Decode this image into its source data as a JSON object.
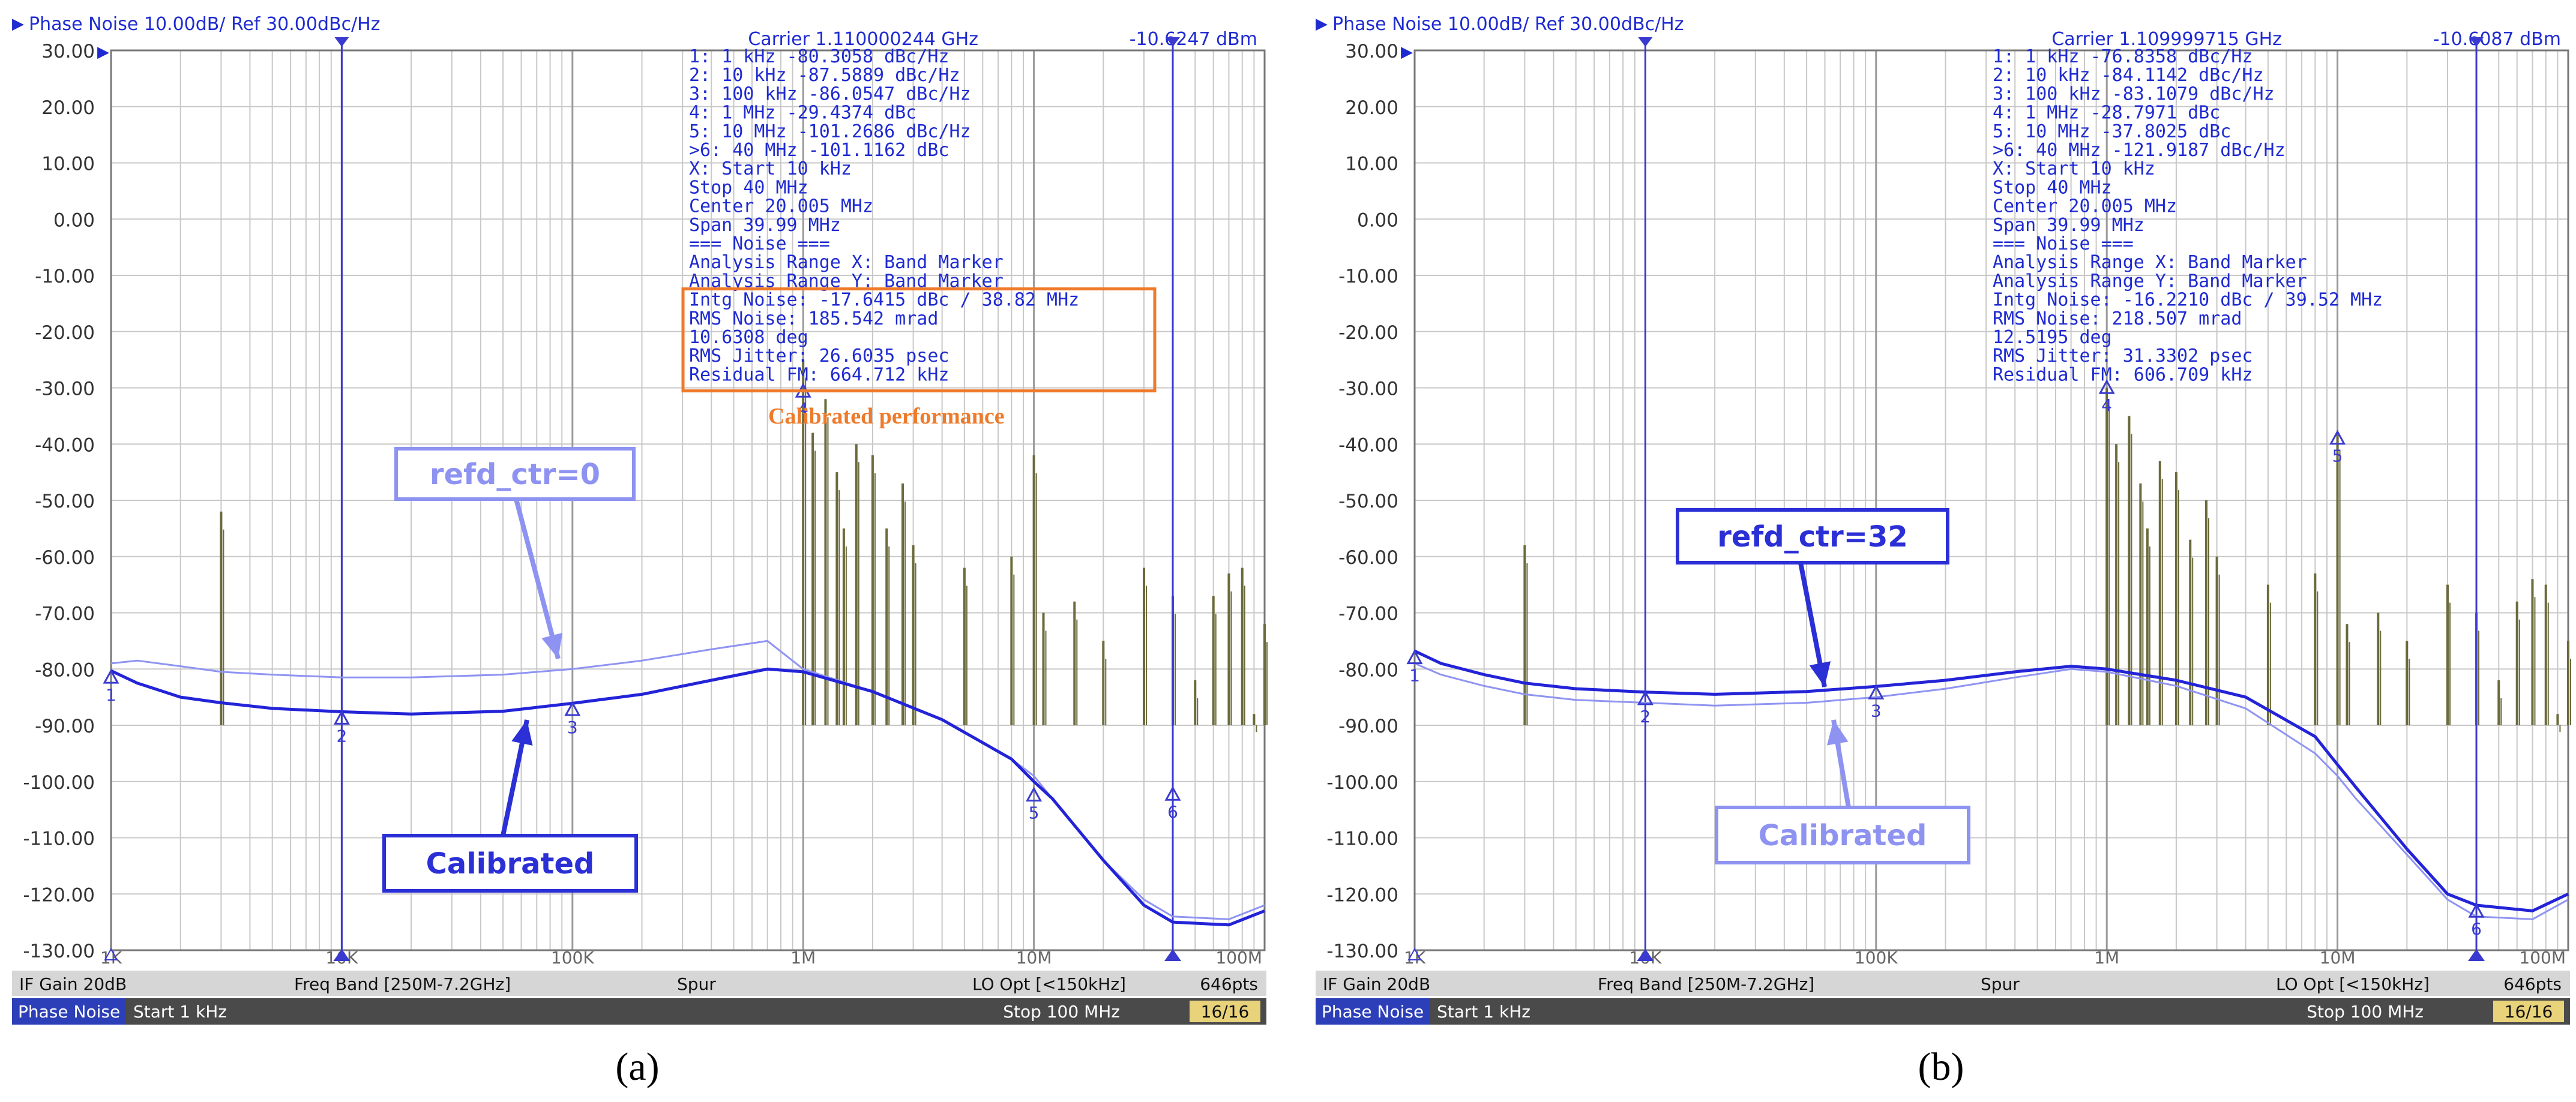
{
  "panels": [
    {
      "id": "a",
      "header": {
        "title": "Phase Noise 10.00dB/ Ref 30.00dBc/Hz",
        "carrier": "Carrier 1.110000244 GHz",
        "power": "-10.6247 dBm"
      },
      "marker_table": [
        " 1:   1 kHz     -80.3058 dBc/Hz",
        " 2:  10 kHz     -87.5889 dBc/Hz",
        " 3: 100 kHz     -86.0547 dBc/Hz",
        " 4:   1 MHz     -29.4374 dBc",
        " 5:  10 MHz    -101.2686 dBc/Hz",
        ">6:  40 MHz    -101.1162 dBc",
        " X: Start 10 kHz",
        "      Stop 40 MHz",
        "    Center 20.005 MHz",
        "      Span 39.99 MHz",
        "=== Noise ===",
        "Analysis Range X: Band Marker",
        "Analysis Range Y: Band Marker",
        "Intg Noise: -17.6415 dBc / 38.82 MHz",
        " RMS Noise: 185.542 mrad",
        "           10.6308 deg",
        "RMS Jitter: 26.6035 psec",
        "Residual FM: 664.712 kHz"
      ],
      "boxed_from_line": 13,
      "box_label": "Calibrated performance",
      "callouts": [
        {
          "id": "refd",
          "text": "refd_ctr=0",
          "color": "#8e93f1"
        },
        {
          "id": "cal",
          "text": "Calibrated",
          "color": "#2b2fd6"
        }
      ],
      "status_bar": {
        "if_gain": "IF Gain 20dB",
        "freq_band": "Freq Band [250M-7.2GHz]",
        "spur": "Spur",
        "lo_opt": "LO Opt [<150kHz]",
        "pts": "646pts"
      },
      "bottom_bar": {
        "mode": "Phase Noise",
        "start": "Start 1 kHz",
        "stop": "Stop 100 MHz",
        "page": "16/16"
      },
      "caption": "(a)"
    },
    {
      "id": "b",
      "header": {
        "title": "Phase Noise 10.00dB/ Ref 30.00dBc/Hz",
        "carrier": "Carrier 1.109999715 GHz",
        "power": "-10.6087 dBm"
      },
      "marker_table": [
        " 1:   1 kHz     -76.8358 dBc/Hz",
        " 2:  10 kHz     -84.1142 dBc/Hz",
        " 3: 100 kHz     -83.1079 dBc/Hz",
        " 4:   1 MHz     -28.7971 dBc",
        " 5:  10 MHz     -37.8025 dBc",
        ">6:  40 MHz    -121.9187 dBc/Hz",
        " X: Start 10 kHz",
        "      Stop 40 MHz",
        "    Center 20.005 MHz",
        "      Span 39.99 MHz",
        "=== Noise ===",
        "Analysis Range X: Band Marker",
        "Analysis Range Y: Band Marker",
        "Intg Noise: -16.2210 dBc / 39.52 MHz",
        " RMS Noise: 218.507 mrad",
        "           12.5195 deg",
        "RMS Jitter: 31.3302 psec",
        "Residual FM: 606.709 kHz"
      ],
      "boxed_from_line": -1,
      "box_label": "",
      "callouts": [
        {
          "id": "refd",
          "text": "refd_ctr=32",
          "color": "#2b2fd6"
        },
        {
          "id": "cal",
          "text": "Calibrated",
          "color": "#8e93f1"
        }
      ],
      "status_bar": {
        "if_gain": "IF Gain 20dB",
        "freq_band": "Freq Band [250M-7.2GHz]",
        "spur": "Spur",
        "lo_opt": "LO Opt [<150kHz]",
        "pts": "646pts"
      },
      "bottom_bar": {
        "mode": "Phase Noise",
        "start": "Start 1 kHz",
        "stop": "Stop 100 MHz",
        "page": "16/16"
      },
      "caption": "(b)"
    }
  ],
  "colors": {
    "trace_dark": "#2323d8",
    "trace_light": "#8f94f2",
    "spur": "#6b6a3c",
    "marker_line": "#3a3ad0",
    "box": "#ef7a2a",
    "text_blue": "#1f2bd1",
    "grid": "#c8c8c8",
    "bar_bg": "#d6d6d6",
    "bar_dark": "#4a4a4a"
  },
  "chart_data": [
    {
      "type": "line",
      "title": "Phase Noise 10.00dB/ Ref 30.00dBc/Hz",
      "x_scale": "log",
      "x_unit": "Hz",
      "xlim": [
        1000,
        100000000
      ],
      "ylim": [
        -130,
        30
      ],
      "y_ticks": [
        "30.00",
        "20.00",
        "10.00",
        "0.00",
        "-10.00",
        "-20.00",
        "-30.00",
        "-40.00",
        "-50.00",
        "-60.00",
        "-70.00",
        "-80.00",
        "-90.00",
        "-100.00",
        "-110.00",
        "-120.00",
        "-130.00"
      ],
      "x_ticks": [
        "1K",
        "10K",
        "100K",
        "1M",
        "10M",
        "100M"
      ],
      "grid": true,
      "series": [
        {
          "role": "calibrated",
          "color": "#2323d8",
          "x": [
            1000,
            1300,
            2000,
            3000,
            5000,
            10000,
            20000,
            50000,
            100000,
            200000,
            400000,
            700000,
            1000000,
            2000000,
            4000000,
            8000000,
            10000000,
            12000000,
            20000000,
            30000000,
            40000000,
            70000000,
            100000000
          ],
          "y": [
            -80.3,
            -82.5,
            -85,
            -86,
            -87,
            -87.6,
            -88,
            -87.5,
            -86.1,
            -84.5,
            -82,
            -80,
            -80.5,
            -84,
            -89,
            -96,
            -100,
            -103,
            -114,
            -122,
            -125,
            -125.5,
            -123
          ]
        },
        {
          "role": "refd_ctr=0",
          "color": "#8f94f2",
          "x": [
            1000,
            1300,
            2000,
            3000,
            5000,
            10000,
            20000,
            50000,
            100000,
            200000,
            400000,
            700000,
            1000000,
            2000000,
            4000000,
            8000000,
            10000000,
            12000000,
            20000000,
            30000000,
            40000000,
            70000000,
            100000000
          ],
          "y": [
            -79,
            -78.5,
            -79.5,
            -80.5,
            -81,
            -81.5,
            -81.5,
            -81,
            -80,
            -78.5,
            -76.5,
            -75,
            -80,
            -84,
            -89,
            -96,
            -99,
            -103,
            -114,
            -121,
            -124,
            -124.5,
            -122
          ]
        }
      ],
      "markers": [
        {
          "label": "1",
          "x": 1000,
          "y": -80.3058
        },
        {
          "label": "2",
          "x": 10000,
          "y": -87.5889
        },
        {
          "label": "3",
          "x": 100000,
          "y": -86.0547
        },
        {
          "label": "4",
          "x": 1000000,
          "y": -29.4374
        },
        {
          "label": "5",
          "x": 10000000,
          "y": -101.2686
        },
        {
          "label": "6",
          "x": 40000000,
          "y": -101.1162
        }
      ],
      "band_markers": [
        10000,
        40000000
      ],
      "spurs": [
        [
          3000,
          -52
        ],
        [
          1000000,
          -25
        ],
        [
          1100000,
          -38
        ],
        [
          1250000,
          -32
        ],
        [
          1400000,
          -45
        ],
        [
          1500000,
          -55
        ],
        [
          1700000,
          -40
        ],
        [
          2000000,
          -42
        ],
        [
          2300000,
          -55
        ],
        [
          2700000,
          -47
        ],
        [
          3000000,
          -58
        ],
        [
          5000000,
          -62
        ],
        [
          8000000,
          -60
        ],
        [
          10000000,
          -42
        ],
        [
          11000000,
          -70
        ],
        [
          15000000,
          -68
        ],
        [
          20000000,
          -75
        ],
        [
          30000000,
          -62
        ],
        [
          40000000,
          -67
        ],
        [
          50000000,
          -82
        ],
        [
          60000000,
          -67
        ],
        [
          70000000,
          -63
        ],
        [
          80000000,
          -62
        ],
        [
          90000000,
          -88
        ],
        [
          100000000,
          -72
        ]
      ]
    },
    {
      "type": "line",
      "title": "Phase Noise 10.00dB/ Ref 30.00dBc/Hz",
      "x_scale": "log",
      "x_unit": "Hz",
      "xlim": [
        1000,
        100000000
      ],
      "ylim": [
        -130,
        30
      ],
      "y_ticks": [
        "30.00",
        "20.00",
        "10.00",
        "0.00",
        "-10.00",
        "-20.00",
        "-30.00",
        "-40.00",
        "-50.00",
        "-60.00",
        "-70.00",
        "-80.00",
        "-90.00",
        "-100.00",
        "-110.00",
        "-120.00",
        "-130.00"
      ],
      "x_ticks": [
        "1K",
        "10K",
        "100K",
        "1M",
        "10M",
        "100M"
      ],
      "grid": true,
      "series": [
        {
          "role": "refd_ctr=32",
          "color": "#2323d8",
          "x": [
            1000,
            1300,
            2000,
            3000,
            5000,
            10000,
            20000,
            50000,
            100000,
            200000,
            400000,
            700000,
            1000000,
            2000000,
            4000000,
            8000000,
            10000000,
            12000000,
            20000000,
            30000000,
            40000000,
            70000000,
            100000000
          ],
          "y": [
            -76.8,
            -79,
            -81,
            -82.5,
            -83.5,
            -84.1,
            -84.5,
            -84,
            -83.1,
            -82,
            -80.5,
            -79.5,
            -80,
            -82,
            -85,
            -92,
            -97,
            -101,
            -112,
            -120,
            -122,
            -123,
            -120
          ]
        },
        {
          "role": "calibrated",
          "color": "#8f94f2",
          "x": [
            1000,
            1300,
            2000,
            3000,
            5000,
            10000,
            20000,
            50000,
            100000,
            200000,
            400000,
            700000,
            1000000,
            2000000,
            4000000,
            8000000,
            10000000,
            12000000,
            20000000,
            30000000,
            40000000,
            70000000,
            100000000
          ],
          "y": [
            -79,
            -81,
            -83,
            -84.5,
            -85.5,
            -86,
            -86.5,
            -86,
            -85,
            -83.5,
            -81.5,
            -80,
            -80.5,
            -83,
            -87,
            -95,
            -99,
            -103,
            -113,
            -121,
            -124,
            -124.5,
            -121
          ]
        }
      ],
      "markers": [
        {
          "label": "1",
          "x": 1000,
          "y": -76.8358
        },
        {
          "label": "2",
          "x": 10000,
          "y": -84.1142
        },
        {
          "label": "3",
          "x": 100000,
          "y": -83.1079
        },
        {
          "label": "4",
          "x": 1000000,
          "y": -28.7971
        },
        {
          "label": "5",
          "x": 10000000,
          "y": -37.8025
        },
        {
          "label": "6",
          "x": 40000000,
          "y": -121.9187
        }
      ],
      "band_markers": [
        10000,
        40000000
      ],
      "spurs": [
        [
          3000,
          -58
        ],
        [
          1000000,
          -30
        ],
        [
          1100000,
          -40
        ],
        [
          1250000,
          -35
        ],
        [
          1400000,
          -47
        ],
        [
          1500000,
          -55
        ],
        [
          1700000,
          -43
        ],
        [
          2000000,
          -45
        ],
        [
          2300000,
          -57
        ],
        [
          2700000,
          -50
        ],
        [
          3000000,
          -60
        ],
        [
          5000000,
          -65
        ],
        [
          8000000,
          -63
        ],
        [
          10000000,
          -38
        ],
        [
          11000000,
          -72
        ],
        [
          15000000,
          -70
        ],
        [
          20000000,
          -75
        ],
        [
          30000000,
          -65
        ],
        [
          40000000,
          -70
        ],
        [
          50000000,
          -82
        ],
        [
          60000000,
          -68
        ],
        [
          70000000,
          -64
        ],
        [
          80000000,
          -65
        ],
        [
          90000000,
          -88
        ],
        [
          100000000,
          -75
        ]
      ]
    }
  ]
}
